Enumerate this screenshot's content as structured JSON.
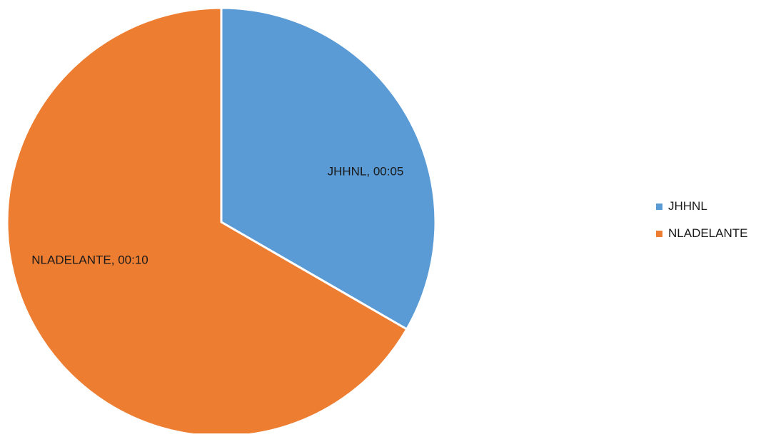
{
  "chart_data": {
    "type": "pie",
    "title": "",
    "slices": [
      {
        "label": "JHHNL",
        "value_label": "00:05",
        "value": 5,
        "color": "#5b9bd5"
      },
      {
        "label": "NLADELANTE",
        "value_label": "00:10",
        "value": 10,
        "color": "#ed7d31"
      }
    ],
    "data_label_separator": ", ",
    "legend": {
      "position": "right",
      "items": [
        "JHHNL",
        "NLADELANTE"
      ]
    }
  }
}
